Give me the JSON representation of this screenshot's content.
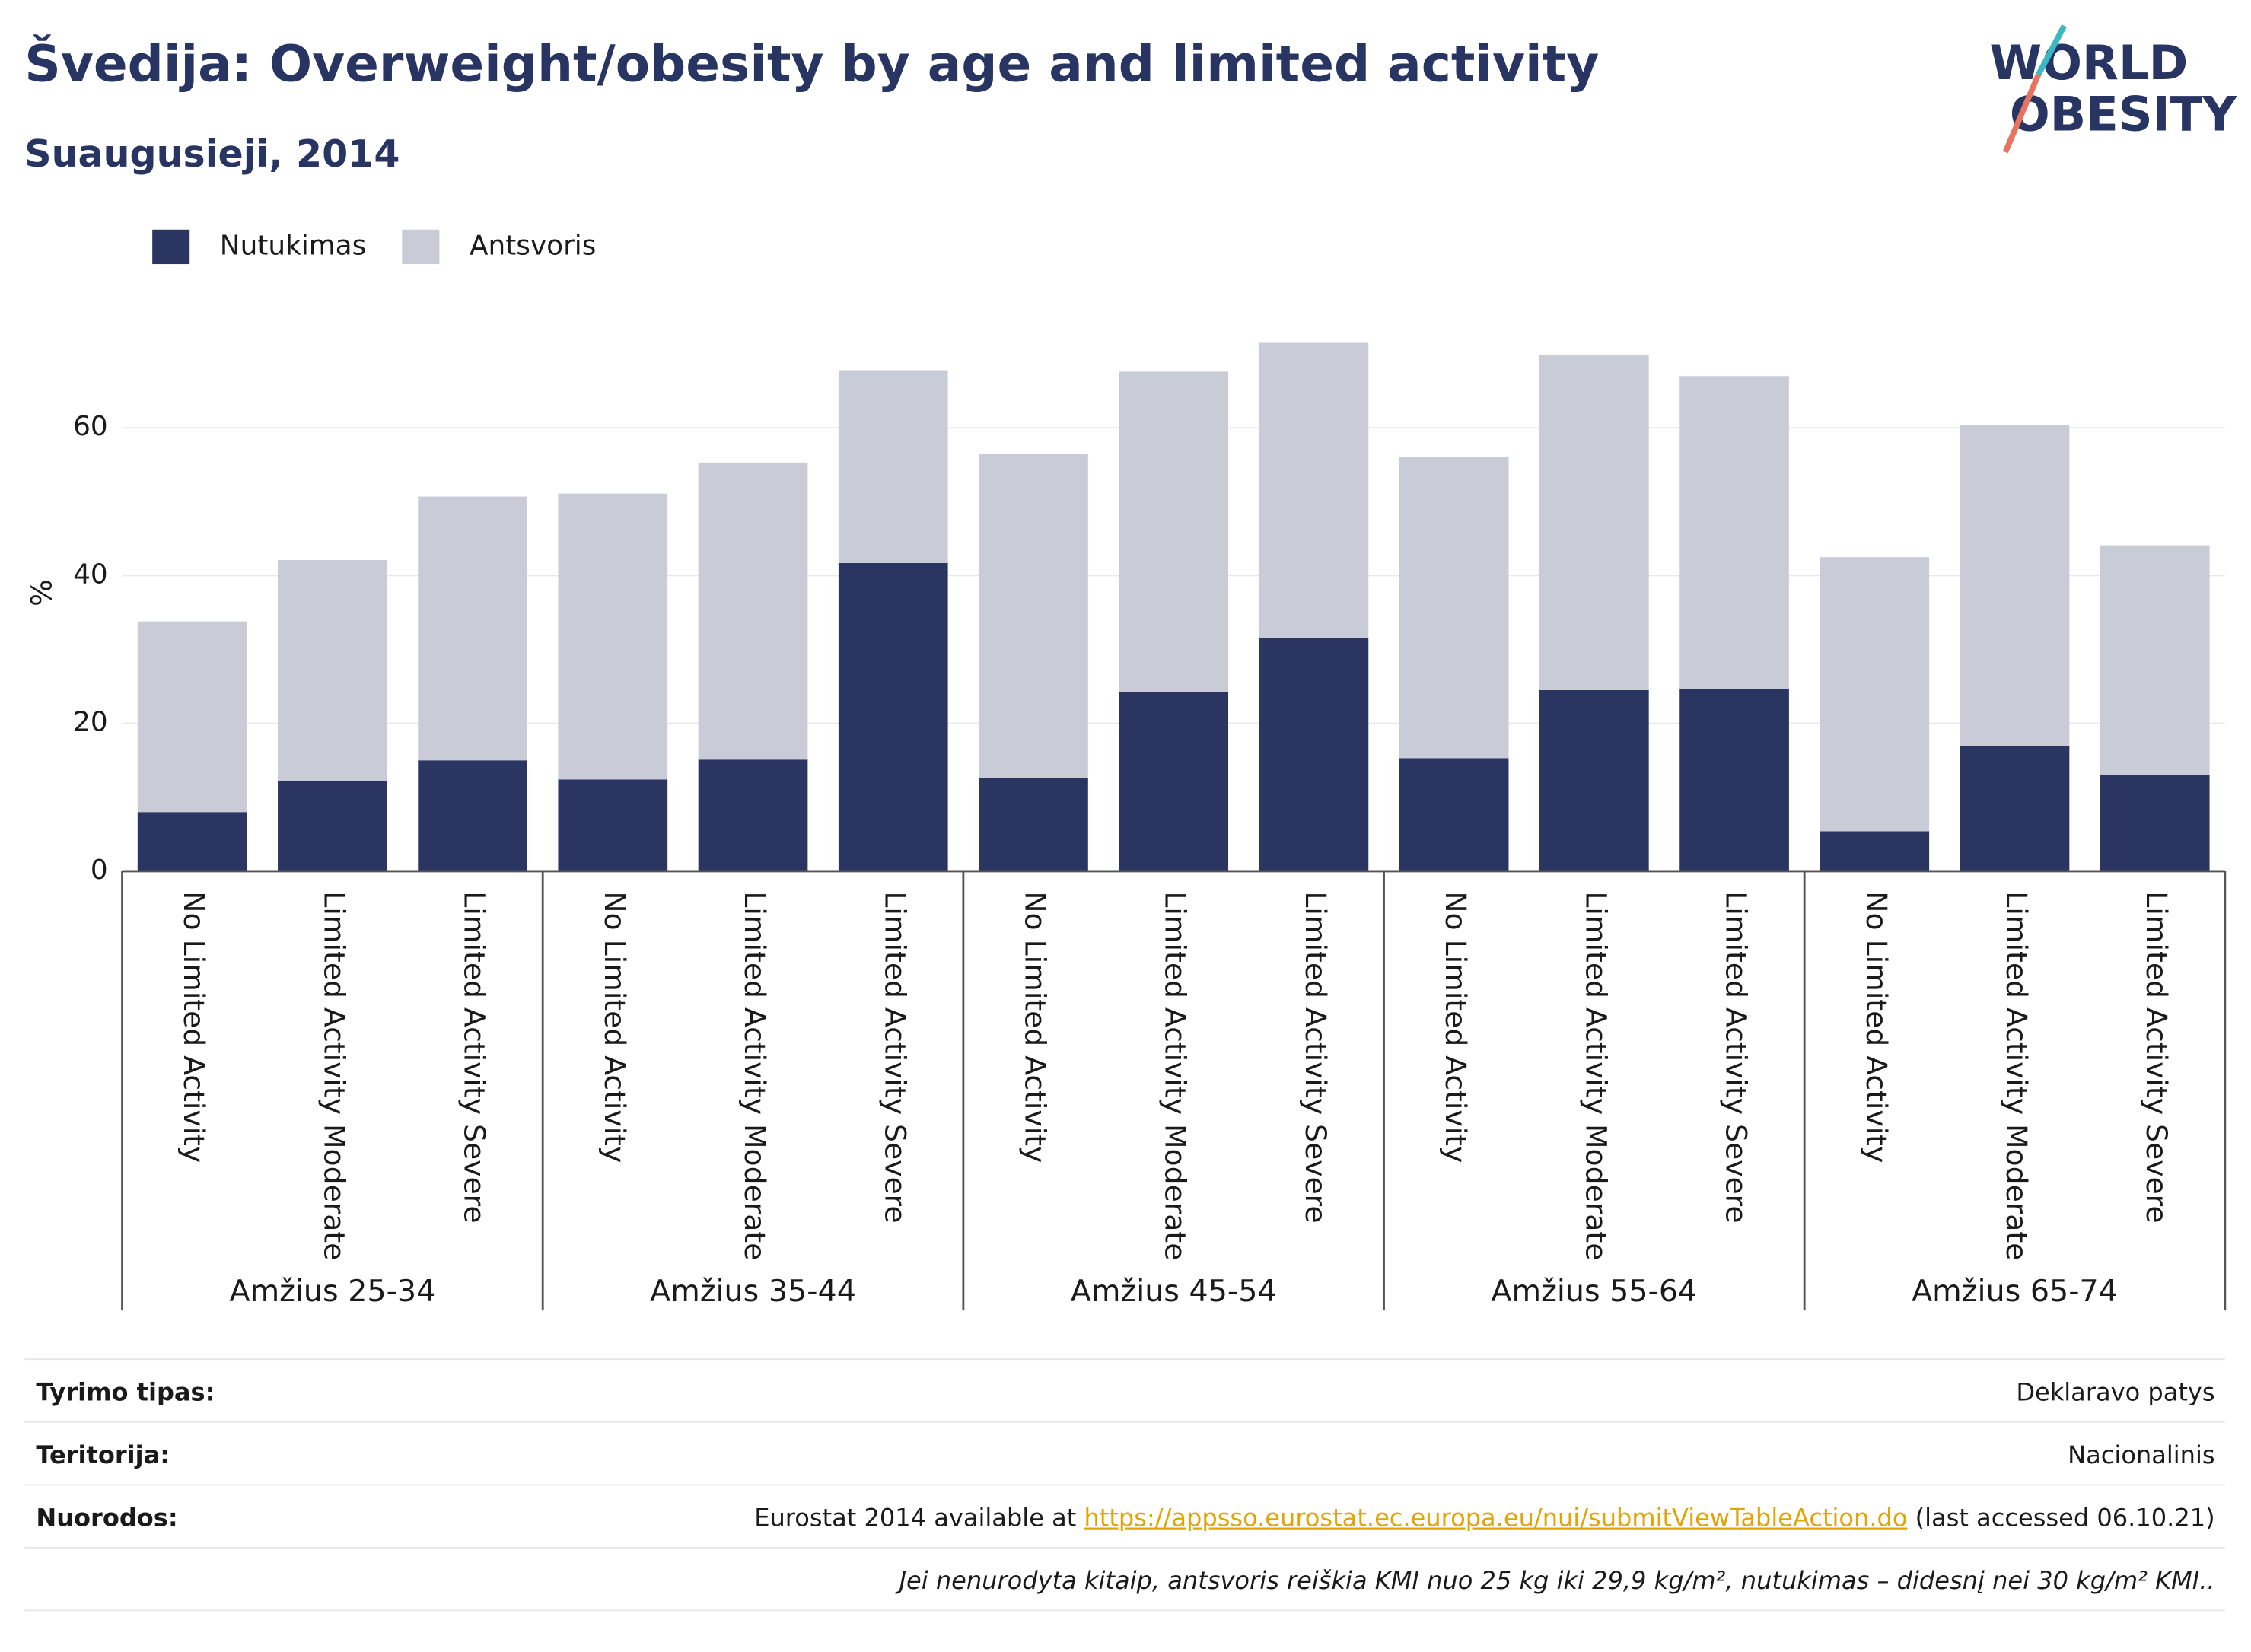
{
  "chart_data": {
    "type": "stacked-bar",
    "title": "Švedija: Overweight/obesity by age and limited activity",
    "subtitle": "Suaugusieji, 2014",
    "y_label": "%",
    "logo": [
      "WORLD",
      "OBESITY"
    ],
    "groups": [
      "Amžius 25-34",
      "Amžius 35-44",
      "Amžius 45-54",
      "Amžius 55-64",
      "Amžius 65-74"
    ],
    "categories": [
      "No Limited Activity",
      "Limited Activity Moderate",
      "Limited Activity Severe",
      "No Limited Activity",
      "Limited Activity Moderate",
      "Limited Activity Severe",
      "No Limited Activity",
      "Limited Activity Moderate",
      "Limited Activity Severe",
      "No Limited Activity",
      "Limited Activity Moderate",
      "Limited Activity Severe",
      "No Limited Activity",
      "Limited Activity Moderate",
      "Limited Activity Severe"
    ],
    "series": [
      {
        "name": "Nutukimas",
        "color": "#2b3561",
        "values": [
          8.0,
          12.2,
          15.0,
          12.4,
          15.1,
          41.7,
          12.6,
          24.3,
          31.5,
          15.3,
          24.5,
          24.7,
          5.4,
          16.9,
          13.0
        ]
      },
      {
        "name": "Antsvoris",
        "color": "#c9cbd7",
        "values": [
          25.8,
          29.9,
          35.7,
          38.7,
          40.2,
          26.1,
          43.9,
          43.3,
          40.0,
          40.8,
          45.4,
          42.3,
          37.1,
          43.5,
          31.1
        ]
      }
    ],
    "ylim": [
      0,
      74
    ],
    "yticks": [
      0,
      20,
      40,
      60
    ],
    "grid": true,
    "legend": "top-left"
  },
  "footer": {
    "rows": [
      {
        "label": "Tyrimo tipas:",
        "value": "Deklaravo patys"
      },
      {
        "label": "Teritorija:",
        "value": "Nacionalinis"
      },
      {
        "label": "Nuorodos:",
        "value": [
          "Eurostat 2014 available at ",
          "https://appsso.eurostat.ec.europa.eu/nui/submitViewTableAction.do",
          " (last accessed 06.10.21)"
        ]
      }
    ],
    "note": "Jei nenurodyta kitaip, antsvoris reiškia KMI nuo 25 kg iki 29,9 kg/m², nutukimas – didesnį nei 30 kg/m² KMI.."
  }
}
